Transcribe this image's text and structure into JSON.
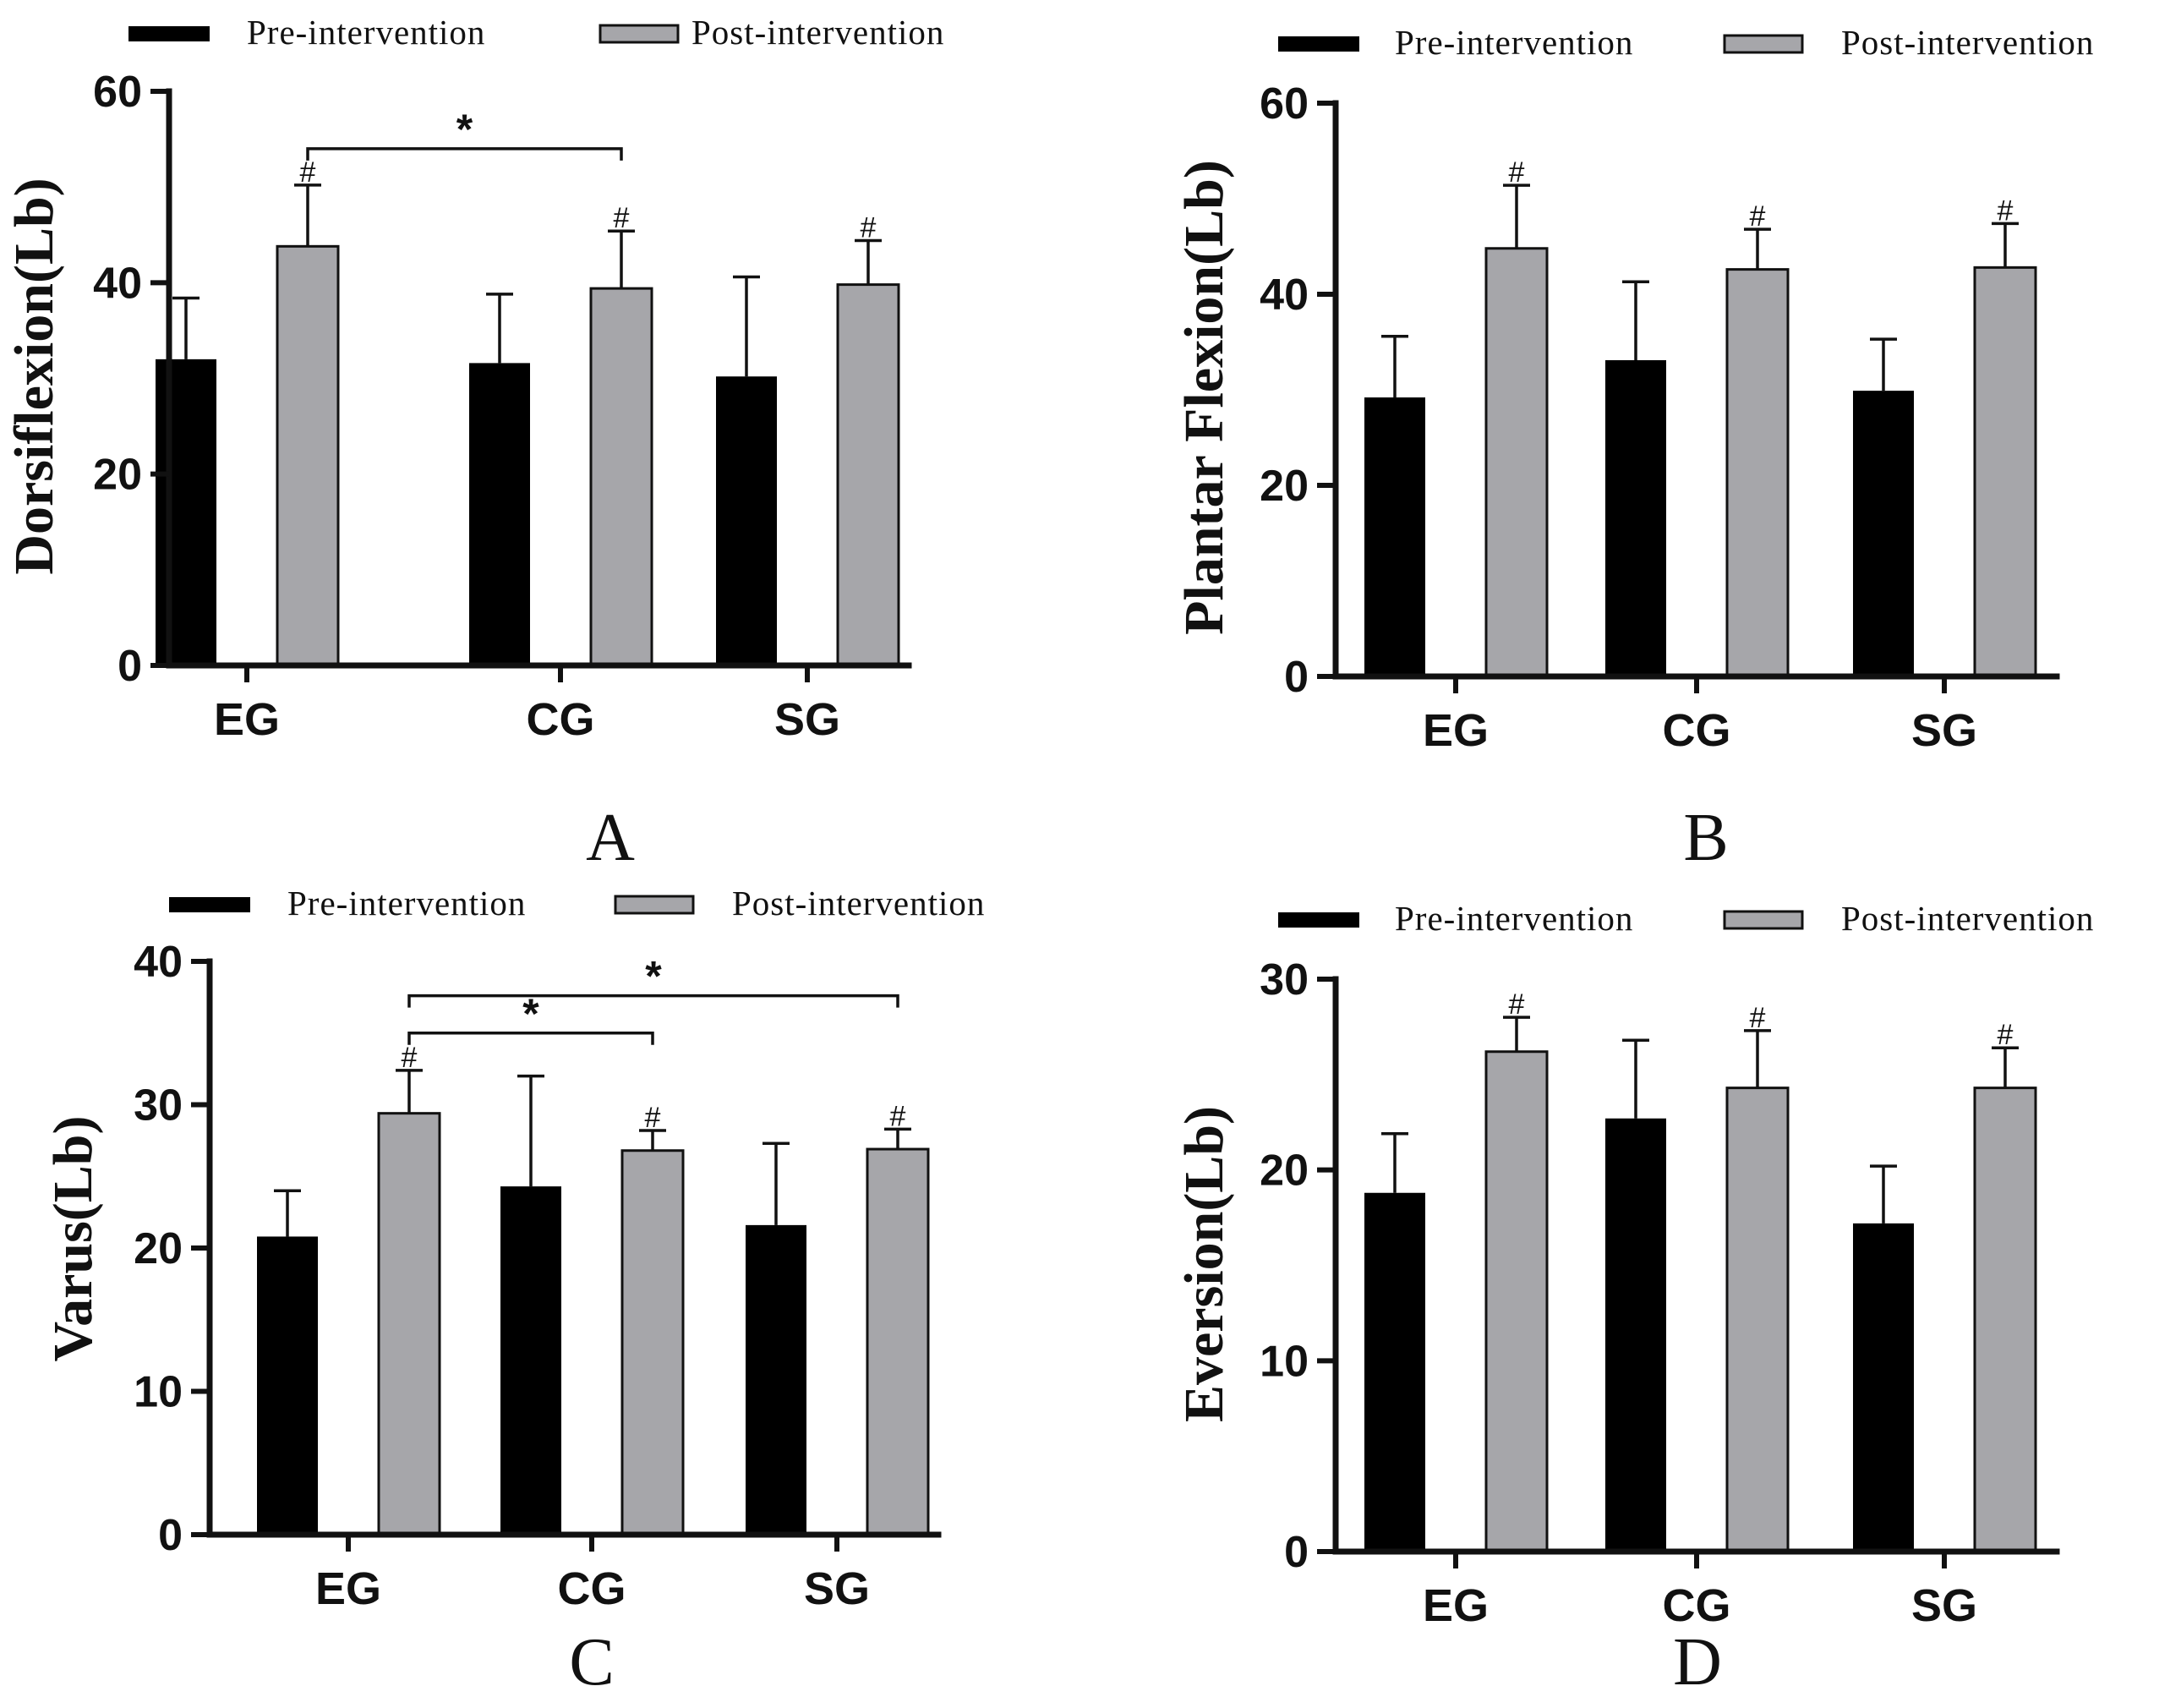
{
  "legend": {
    "pre_label": "Pre-intervention",
    "post_label": "Post-intervention"
  },
  "colors": {
    "pre": "#000000",
    "post": "#a6a6aa",
    "axis": "#111111"
  },
  "chart_data": [
    {
      "type": "bar",
      "panel": "A",
      "title": "",
      "ylabel": "Dorsiflexion(Lb)",
      "xlabel": "",
      "categories": [
        "EG",
        "CG",
        "SG"
      ],
      "ylim": [
        0,
        60
      ],
      "yticks": [
        0,
        20,
        40,
        60
      ],
      "series": [
        {
          "name": "Pre-intervention",
          "values": [
            32,
            31.6,
            30.2
          ],
          "errors": [
            6.4,
            7.2,
            10.4
          ]
        },
        {
          "name": "Post-intervention",
          "values": [
            43.8,
            39.4,
            39.8
          ],
          "errors": [
            6.4,
            6.0,
            4.6
          ]
        }
      ],
      "hash_marks": [
        "#",
        "#",
        "#"
      ],
      "significance": [
        {
          "from": "EG",
          "to": "CG",
          "y": 54,
          "label": "*"
        }
      ],
      "legend_position": "top"
    },
    {
      "type": "bar",
      "panel": "B",
      "title": "",
      "ylabel": "Plantar Flexion(Lb)",
      "xlabel": "",
      "categories": [
        "EG",
        "CG",
        "SG"
      ],
      "ylim": [
        0,
        60
      ],
      "yticks": [
        0,
        20,
        40,
        60
      ],
      "series": [
        {
          "name": "Pre-intervention",
          "values": [
            29.2,
            33.1,
            29.9
          ],
          "errors": [
            6.4,
            8.2,
            5.4
          ]
        },
        {
          "name": "Post-intervention",
          "values": [
            44.8,
            42.6,
            42.8
          ],
          "errors": [
            6.6,
            4.2,
            4.6
          ]
        }
      ],
      "hash_marks": [
        "#",
        "#",
        "#"
      ],
      "significance": [],
      "legend_position": "top"
    },
    {
      "type": "bar",
      "panel": "C",
      "title": "",
      "ylabel": "Varus(Lb)",
      "xlabel": "",
      "categories": [
        "EG",
        "CG",
        "SG"
      ],
      "ylim": [
        0,
        40
      ],
      "yticks": [
        0,
        10,
        20,
        30,
        40
      ],
      "series": [
        {
          "name": "Pre-intervention",
          "values": [
            20.8,
            24.3,
            21.6
          ],
          "errors": [
            3.2,
            7.7,
            5.7
          ]
        },
        {
          "name": "Post-intervention",
          "values": [
            29.4,
            26.8,
            26.9
          ],
          "errors": [
            3.0,
            1.4,
            1.4
          ]
        }
      ],
      "hash_marks": [
        "#",
        "#",
        "#"
      ],
      "significance": [
        {
          "from": "EG",
          "to": "CG",
          "y": 35,
          "label": "*"
        },
        {
          "from": "EG",
          "to": "SG",
          "y": 37.6,
          "label": "*"
        }
      ],
      "legend_position": "top"
    },
    {
      "type": "bar",
      "panel": "D",
      "title": "",
      "ylabel": "Eversion(Lb)",
      "xlabel": "",
      "categories": [
        "EG",
        "CG",
        "SG"
      ],
      "ylim": [
        0,
        30
      ],
      "yticks": [
        0,
        10,
        20,
        30
      ],
      "series": [
        {
          "name": "Pre-intervention",
          "values": [
            18.8,
            22.7,
            17.2
          ],
          "errors": [
            3.1,
            4.1,
            3.0
          ]
        },
        {
          "name": "Post-intervention",
          "values": [
            26.2,
            24.3,
            24.3
          ],
          "errors": [
            1.8,
            3.0,
            2.1
          ]
        }
      ],
      "hash_marks": [
        "#",
        "#",
        "#"
      ],
      "significance": [],
      "legend_position": "top"
    }
  ]
}
